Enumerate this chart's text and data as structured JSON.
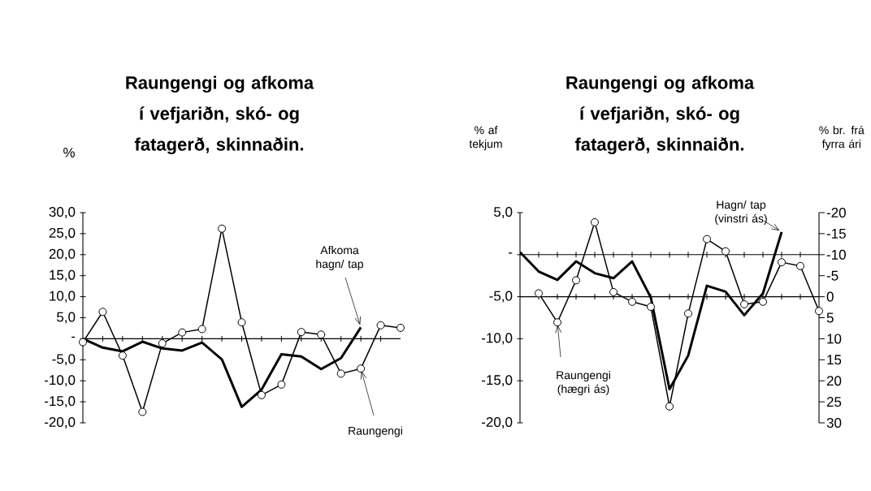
{
  "chart_data": [
    {
      "type": "line",
      "title": "Raungengi og afkoma í vefjariðn, skó- og fatagerð, skinnaðin.",
      "ylabel": "%",
      "categories": [
        null,
        null,
        null,
        null,
        null,
        null,
        null,
        null,
        null,
        null,
        null,
        null,
        null,
        null,
        null,
        null,
        null
      ],
      "series": [
        {
          "name": "Afkoma hagn/ tap",
          "color": "#000000",
          "marker": "none",
          "values": [
            0.0,
            -2.1,
            -3.0,
            -0.7,
            -2.3,
            -2.8,
            -0.9,
            -4.9,
            -16.2,
            -12.1,
            -3.7,
            -4.2,
            -7.2,
            -4.6,
            2.7,
            null,
            null
          ]
        },
        {
          "name": "Raungengi",
          "color": "#000000",
          "marker": "circle",
          "values": [
            -0.8,
            6.4,
            -4.0,
            -17.4,
            -1.1,
            1.5,
            2.3,
            26.2,
            3.9,
            -13.4,
            -10.9,
            1.6,
            1.0,
            -8.3,
            -7.1,
            3.2,
            2.6
          ]
        }
      ],
      "ylim": [
        -20,
        30
      ],
      "yticks": [
        {
          "value": -20,
          "label": "-20,0"
        },
        {
          "value": -15,
          "label": "-15,0"
        },
        {
          "value": -10,
          "label": "-10,0"
        },
        {
          "value": -5,
          "label": "-5,0"
        },
        {
          "value": 0,
          "label": "-"
        },
        {
          "value": 5,
          "label": "5,0"
        },
        {
          "value": 10,
          "label": "10,0"
        },
        {
          "value": 15,
          "label": "15,0"
        },
        {
          "value": 20,
          "label": "20,0"
        },
        {
          "value": 25,
          "label": "25,0"
        },
        {
          "value": 30,
          "label": "30,0"
        }
      ]
    },
    {
      "type": "line",
      "title": "Raungengi og afkoma í vefjariðn, skó- og fatagerð, skinnaiðn.",
      "ylabel": "% af tekjum",
      "y2label": "% br. frá fyrra ári",
      "categories": [
        null,
        null,
        null,
        null,
        null,
        null,
        null,
        null,
        null,
        null,
        null,
        null,
        null,
        null,
        null,
        null,
        null
      ],
      "series": [
        {
          "name": "Hagn/ tap (vinstri ás)",
          "color": "#000000",
          "marker": "none",
          "values": [
            0.3,
            -2.0,
            -3.0,
            -0.8,
            -2.2,
            -2.8,
            -0.8,
            -5.1,
            -16.0,
            -12.0,
            -3.7,
            -4.4,
            -7.2,
            -4.6,
            2.7,
            null,
            null
          ]
        },
        {
          "name": "Raungengi (hægri ás)",
          "color": "#000000",
          "marker": "circle",
          "axis": "y2",
          "values": [
            null,
            -0.8,
            6.1,
            -3.9,
            -17.7,
            -1.1,
            1.2,
            2.4,
            26.1,
            4.0,
            -13.7,
            -10.8,
            1.8,
            1.2,
            -8.2,
            -7.3,
            3.4
          ]
        }
      ],
      "ylim": [
        -20,
        5
      ],
      "yticks": [
        {
          "value": -20,
          "label": "-20,0"
        },
        {
          "value": -15,
          "label": "-15,0"
        },
        {
          "value": -10,
          "label": "-10,0"
        },
        {
          "value": -5,
          "label": "-5,0"
        },
        {
          "value": 0,
          "label": "-"
        },
        {
          "value": 5,
          "label": "5,0"
        }
      ],
      "y2lim": [
        30,
        -20
      ],
      "y2ticks": [
        -20,
        -15,
        -10,
        -5,
        0,
        5,
        10,
        15,
        20,
        25,
        30
      ]
    }
  ]
}
